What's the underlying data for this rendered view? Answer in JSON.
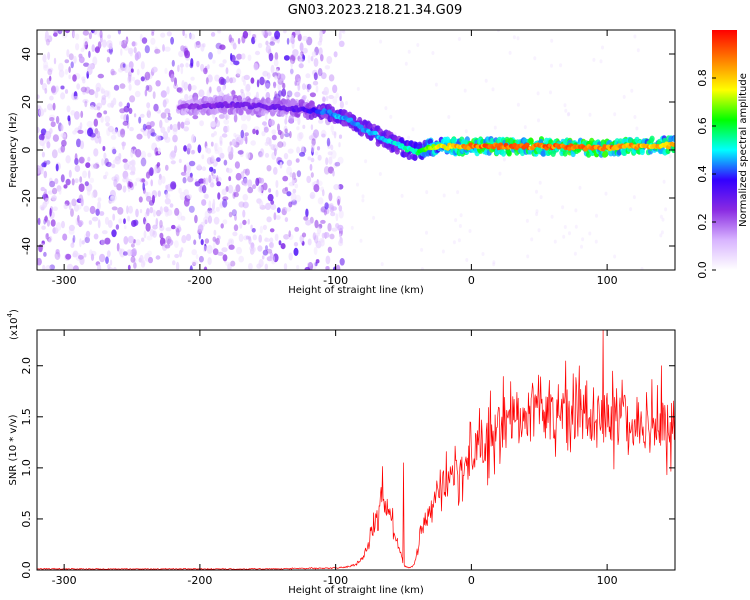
{
  "figure_title": "GN03.2023.218.21.34.G09",
  "chart_data": [
    {
      "type": "heatmap",
      "xlabel": "Height of straight line (km)",
      "ylabel": "Frequency (Hz)",
      "xlim": [
        -320,
        150
      ],
      "ylim": [
        -50,
        50
      ],
      "xticks": [
        -300,
        -200,
        -100,
        0,
        100
      ],
      "xtick_labels": [
        "-300",
        "-200",
        "-100",
        "0",
        "100"
      ],
      "yticks": [
        -40,
        -20,
        0,
        20,
        40
      ],
      "ytick_labels": [
        "-40",
        "-20",
        "0",
        "20",
        "40"
      ],
      "noise_region_x": [
        -320,
        -95
      ],
      "ridge": {
        "x": [
          -215,
          -180,
          -150,
          -125,
          -110,
          -95,
          -80,
          -65,
          -50,
          -40,
          -30,
          -15,
          0,
          20,
          50,
          80,
          100,
          120,
          150
        ],
        "frequency": [
          18,
          19,
          18,
          17,
          16,
          14,
          9,
          5,
          1,
          -1,
          1,
          1.5,
          1.5,
          1.5,
          1.5,
          1,
          1,
          1.5,
          2
        ],
        "amplitude": [
          0.25,
          0.3,
          0.3,
          0.35,
          0.45,
          0.5,
          0.5,
          0.5,
          0.55,
          0.6,
          0.75,
          0.85,
          0.95,
          0.95,
          0.95,
          0.95,
          0.95,
          0.9,
          0.85
        ]
      },
      "colorbar": {
        "label": "Normalized spectral amplitude",
        "range": [
          0,
          1
        ],
        "ticks": [
          0.0,
          0.2,
          0.4,
          0.6,
          0.8
        ],
        "tick_labels": [
          "0.0",
          "0.2",
          "0.4",
          "0.6",
          "0.8"
        ],
        "colormap": [
          "#ffffff",
          "#d8b4ff",
          "#8a2be2",
          "#3300ff",
          "#00ffff",
          "#00ff00",
          "#ffff00",
          "#ff8000",
          "#ff0000"
        ]
      }
    },
    {
      "type": "line",
      "xlabel": "Height of straight line (km)",
      "ylabel": "SNR (10 * v/v)",
      "scale_label": "(x10",
      "scale_exponent": "4",
      "xlim": [
        -320,
        150
      ],
      "ylim": [
        0,
        2.35
      ],
      "xticks": [
        -300,
        -200,
        -100,
        0,
        100
      ],
      "xtick_labels": [
        "-300",
        "-200",
        "-100",
        "0",
        "100"
      ],
      "yticks": [
        0.0,
        0.5,
        1.0,
        1.5,
        2.0
      ],
      "ytick_labels": [
        "0.0",
        "0.5",
        "1.0",
        "1.5",
        "2.0"
      ],
      "color": "#ff0000",
      "series": [
        {
          "x": [
            -320,
            -250,
            -150,
            -100,
            -90,
            -80,
            -75,
            -70,
            -65,
            -62,
            -58,
            -55,
            -52,
            -50,
            -46,
            -42,
            -38,
            -33,
            -25,
            -15,
            -5,
            0,
            10,
            20,
            30,
            40,
            60,
            80,
            100,
            120,
            135,
            150
          ],
          "y": [
            0.01,
            0.01,
            0.01,
            0.02,
            0.03,
            0.1,
            0.3,
            0.5,
            0.8,
            0.6,
            0.45,
            0.3,
            0.15,
            0.05,
            0.02,
            0.05,
            0.3,
            0.55,
            0.8,
            0.9,
            1.0,
            1.1,
            1.25,
            1.4,
            1.5,
            1.5,
            1.55,
            1.55,
            1.5,
            1.45,
            1.4,
            1.45
          ]
        }
      ],
      "peaks": [
        {
          "x": -50,
          "y": 1.05
        },
        {
          "x": -60,
          "y": 0.6
        },
        {
          "x": 97,
          "y": 2.35
        },
        {
          "x": 140,
          "y": 2.0
        }
      ]
    }
  ]
}
